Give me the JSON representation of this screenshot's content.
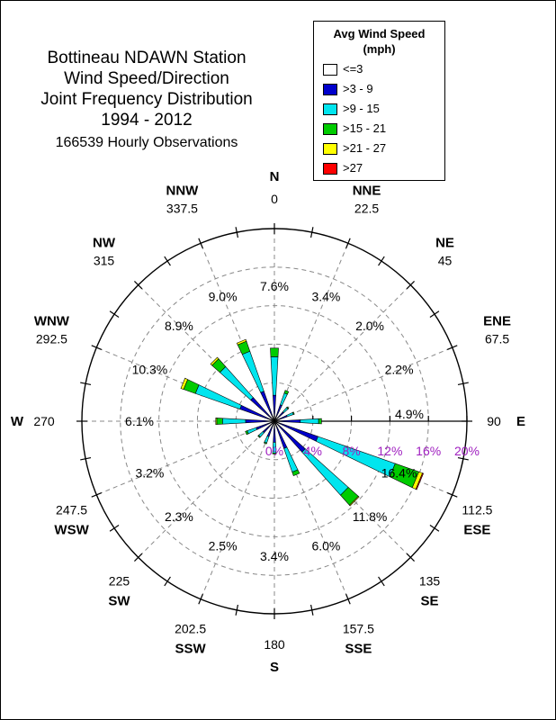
{
  "chart_data": {
    "type": "windrose",
    "title": [
      "Bottineau NDAWN Station",
      "Wind Speed/Direction",
      "Joint Frequency Distribution",
      "1994 - 2012"
    ],
    "subtitle": "166539 Hourly Observations",
    "legend_title": [
      "Avg Wind Speed",
      "(mph)"
    ],
    "speed_bins": [
      {
        "label": "<=3",
        "color": "#ffffff"
      },
      {
        "label": ">3 - 9",
        "color": "#0000cc"
      },
      {
        "label": ">9 - 15",
        "color": "#00e5ee"
      },
      {
        "label": ">15 - 21",
        "color": "#00cc00"
      },
      {
        "label": ">21 - 27",
        "color": "#ffff00"
      },
      {
        "label": ">27",
        "color": "#ff0000"
      }
    ],
    "radial_max": 20,
    "radial_ticks": [
      0,
      4,
      8,
      12,
      16,
      20
    ],
    "radial_tick_labels": [
      "0%",
      "4%",
      "8%",
      "12%",
      "16%",
      "20%"
    ],
    "directions": [
      {
        "abbr": "N",
        "deg": "0"
      },
      {
        "abbr": "NNE",
        "deg": "22.5"
      },
      {
        "abbr": "NE",
        "deg": "45"
      },
      {
        "abbr": "ENE",
        "deg": "67.5"
      },
      {
        "abbr": "E",
        "deg": "90"
      },
      {
        "abbr": "ESE",
        "deg": "112.5"
      },
      {
        "abbr": "SE",
        "deg": "135"
      },
      {
        "abbr": "SSE",
        "deg": "157.5"
      },
      {
        "abbr": "S",
        "deg": "180"
      },
      {
        "abbr": "SSW",
        "deg": "202.5"
      },
      {
        "abbr": "SW",
        "deg": "225"
      },
      {
        "abbr": "WSW",
        "deg": "247.5"
      },
      {
        "abbr": "W",
        "deg": "270"
      },
      {
        "abbr": "WNW",
        "deg": "292.5"
      },
      {
        "abbr": "NW",
        "deg": "315"
      },
      {
        "abbr": "NNW",
        "deg": "337.5"
      }
    ],
    "direction_totals": [
      "7.6%",
      "3.4%",
      "2.0%",
      "2.2%",
      "4.9%",
      "16.4%",
      "11.8%",
      "6.0%",
      "3.4%",
      "2.5%",
      "2.3%",
      "3.2%",
      "6.1%",
      "10.3%",
      "8.9%",
      "9.0%"
    ],
    "frequencies": [
      [
        0.3,
        2.4,
        4.0,
        0.9,
        0.0,
        0.0
      ],
      [
        0.3,
        1.5,
        1.3,
        0.3,
        0.0,
        0.0
      ],
      [
        0.3,
        1.0,
        0.6,
        0.1,
        0.0,
        0.0
      ],
      [
        0.3,
        1.1,
        0.7,
        0.1,
        0.0,
        0.0
      ],
      [
        0.3,
        2.4,
        1.9,
        0.3,
        0.0,
        0.0
      ],
      [
        0.3,
        4.5,
        8.5,
        2.6,
        0.4,
        0.1
      ],
      [
        0.3,
        4.0,
        6.0,
        1.4,
        0.1,
        0.0
      ],
      [
        0.3,
        2.7,
        2.6,
        0.4,
        0.0,
        0.0
      ],
      [
        0.3,
        1.9,
        1.1,
        0.1,
        0.0,
        0.0
      ],
      [
        0.3,
        1.4,
        0.7,
        0.1,
        0.0,
        0.0
      ],
      [
        0.3,
        1.3,
        0.6,
        0.1,
        0.0,
        0.0
      ],
      [
        0.3,
        1.7,
        1.0,
        0.2,
        0.0,
        0.0
      ],
      [
        0.3,
        2.7,
        2.4,
        0.6,
        0.1,
        0.0
      ],
      [
        0.3,
        3.5,
        4.9,
        1.3,
        0.3,
        0.0
      ],
      [
        0.3,
        3.0,
        4.3,
        1.1,
        0.2,
        0.0
      ],
      [
        0.3,
        3.0,
        4.4,
        1.1,
        0.2,
        0.0
      ]
    ]
  }
}
